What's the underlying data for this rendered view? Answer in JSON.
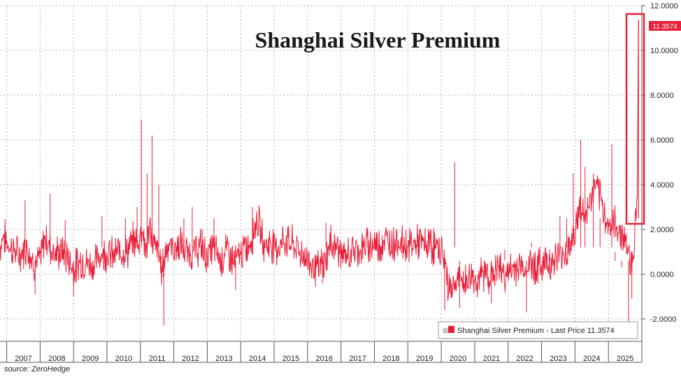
{
  "chart_data": {
    "type": "line",
    "title": "Shanghai Silver Premium",
    "ylim": [
      -3,
      12
    ],
    "yticks": [
      -2,
      0,
      2,
      4,
      6,
      8,
      10,
      12
    ],
    "ytick_labels": [
      "-2.0000",
      "0.0000",
      "2.0000",
      "4.0000",
      "6.0000",
      "8.0000",
      "10.0000",
      "12.0000"
    ],
    "xticks": [
      "2007",
      "2008",
      "2009",
      "2010",
      "2011",
      "2012",
      "2013",
      "2014",
      "2015",
      "2016",
      "2017",
      "2018",
      "2019",
      "2020",
      "2021",
      "2022",
      "2023",
      "2024",
      "2025"
    ],
    "xrange": [
      2006.8,
      2026.0
    ],
    "grid": true,
    "legend_position": "bottom-right",
    "series": [
      {
        "name": "Shanghai Silver Premium - Last Price 11.3574",
        "color": "#e8203a",
        "last_value": 11.3574,
        "last_label": "11.3574",
        "x": [
          2006.8,
          2006.9,
          2007.0,
          2007.2,
          2007.4,
          2007.6,
          2007.8,
          2008.0,
          2008.15,
          2008.3,
          2008.5,
          2008.7,
          2008.85,
          2009.0,
          2009.2,
          2009.4,
          2009.6,
          2009.8,
          2010.0,
          2010.2,
          2010.4,
          2010.6,
          2010.8,
          2010.95,
          2011.05,
          2011.15,
          2011.3,
          2011.4,
          2011.5,
          2011.65,
          2011.8,
          2012.0,
          2012.2,
          2012.4,
          2012.6,
          2012.8,
          2013.0,
          2013.2,
          2013.4,
          2013.6,
          2013.8,
          2014.0,
          2014.15,
          2014.3,
          2014.5,
          2014.7,
          2014.9,
          2015.1,
          2015.3,
          2015.5,
          2015.7,
          2015.9,
          2016.1,
          2016.3,
          2016.5,
          2016.7,
          2016.9,
          2017.1,
          2017.3,
          2017.5,
          2017.7,
          2017.9,
          2018.1,
          2018.3,
          2018.5,
          2018.7,
          2018.9,
          2019.1,
          2019.3,
          2019.5,
          2019.7,
          2019.9,
          2020.05,
          2020.2,
          2020.35,
          2020.5,
          2020.7,
          2020.9,
          2021.1,
          2021.3,
          2021.5,
          2021.7,
          2021.9,
          2022.1,
          2022.3,
          2022.5,
          2022.7,
          2022.9,
          2023.1,
          2023.3,
          2023.5,
          2023.7,
          2023.9,
          2024.05,
          2024.15,
          2024.3,
          2024.45,
          2024.6,
          2024.75,
          2024.9,
          2025.05,
          2025.2,
          2025.35,
          2025.45,
          2025.55,
          2025.65,
          2025.72,
          2025.78,
          2025.82,
          2025.86,
          2025.9
        ],
        "y": [
          1.2,
          1.8,
          1.4,
          1.1,
          0.8,
          1.3,
          0.5,
          0.6,
          1.7,
          1.2,
          0.9,
          1.0,
          0.7,
          0.2,
          0.6,
          0.5,
          0.4,
          0.9,
          1.0,
          0.8,
          1.1,
          1.0,
          1.5,
          1.4,
          2.2,
          1.0,
          2.1,
          1.3,
          1.1,
          0.2,
          1.4,
          1.1,
          1.3,
          0.9,
          1.0,
          1.2,
          0.8,
          1.2,
          0.6,
          1.1,
          0.5,
          0.9,
          1.1,
          1.5,
          2.5,
          1.3,
          1.4,
          1.2,
          1.5,
          1.4,
          1.1,
          0.8,
          0.5,
          0.2,
          0.5,
          1.4,
          1.2,
          0.7,
          1.0,
          1.1,
          1.2,
          1.4,
          1.3,
          1.5,
          1.4,
          1.5,
          1.3,
          1.3,
          1.4,
          1.3,
          1.3,
          1.1,
          1.0,
          -0.5,
          -0.6,
          -0.2,
          -0.4,
          -0.1,
          -0.3,
          0.1,
          -0.1,
          0.3,
          0.0,
          0.1,
          0.4,
          0.2,
          0.5,
          0.3,
          0.6,
          0.5,
          0.8,
          0.9,
          1.5,
          2.2,
          3.0,
          2.5,
          3.2,
          4.0,
          3.3,
          2.6,
          2.1,
          2.2,
          1.9,
          1.7,
          1.4,
          0.5,
          0.8,
          1.5,
          2.5,
          3.3,
          11.3574
        ],
        "spikes": [
          [
            2007.55,
            3.3
          ],
          [
            2007.85,
            -0.9
          ],
          [
            2008.3,
            3.6
          ],
          [
            2008.75,
            2.4
          ],
          [
            2009.0,
            -1.0
          ],
          [
            2009.85,
            2.6
          ],
          [
            2010.55,
            2.5
          ],
          [
            2010.9,
            3.0
          ],
          [
            2011.03,
            6.9
          ],
          [
            2011.2,
            4.5
          ],
          [
            2011.35,
            6.2
          ],
          [
            2011.55,
            4.0
          ],
          [
            2011.7,
            -2.3
          ],
          [
            2012.3,
            2.5
          ],
          [
            2012.55,
            3.0
          ],
          [
            2012.85,
            2.0
          ],
          [
            2013.2,
            2.5
          ],
          [
            2013.55,
            1.8
          ],
          [
            2013.85,
            -0.7
          ],
          [
            2014.35,
            3.0
          ],
          [
            2016.45,
            -0.4
          ],
          [
            2016.55,
            2.3
          ],
          [
            2017.8,
            1.9
          ],
          [
            2019.35,
            2.0
          ],
          [
            2019.7,
            2.0
          ],
          [
            2020.1,
            -1.6
          ],
          [
            2020.4,
            5.0
          ],
          [
            2020.55,
            -1.5
          ],
          [
            2021.5,
            -1.3
          ],
          [
            2021.9,
            1.1
          ],
          [
            2022.55,
            -1.7
          ],
          [
            2022.7,
            1.4
          ],
          [
            2023.25,
            1.1
          ],
          [
            2023.55,
            2.6
          ],
          [
            2023.75,
            2.5
          ],
          [
            2023.95,
            4.5
          ],
          [
            2024.17,
            6.0
          ],
          [
            2024.3,
            4.8
          ],
          [
            2024.55,
            4.5
          ],
          [
            2024.75,
            2.5
          ],
          [
            2025.1,
            5.8
          ],
          [
            2025.2,
            1.0
          ],
          [
            2025.4,
            0.3
          ],
          [
            2025.5,
            1.6
          ],
          [
            2025.6,
            -2.4
          ],
          [
            2025.7,
            -1.1
          ]
        ]
      }
    ],
    "legend": {
      "label": "Shanghai Silver Premium - Last Price 11.3574",
      "marker_symbol": "⊞"
    },
    "source": "source: ZeroHedge"
  }
}
